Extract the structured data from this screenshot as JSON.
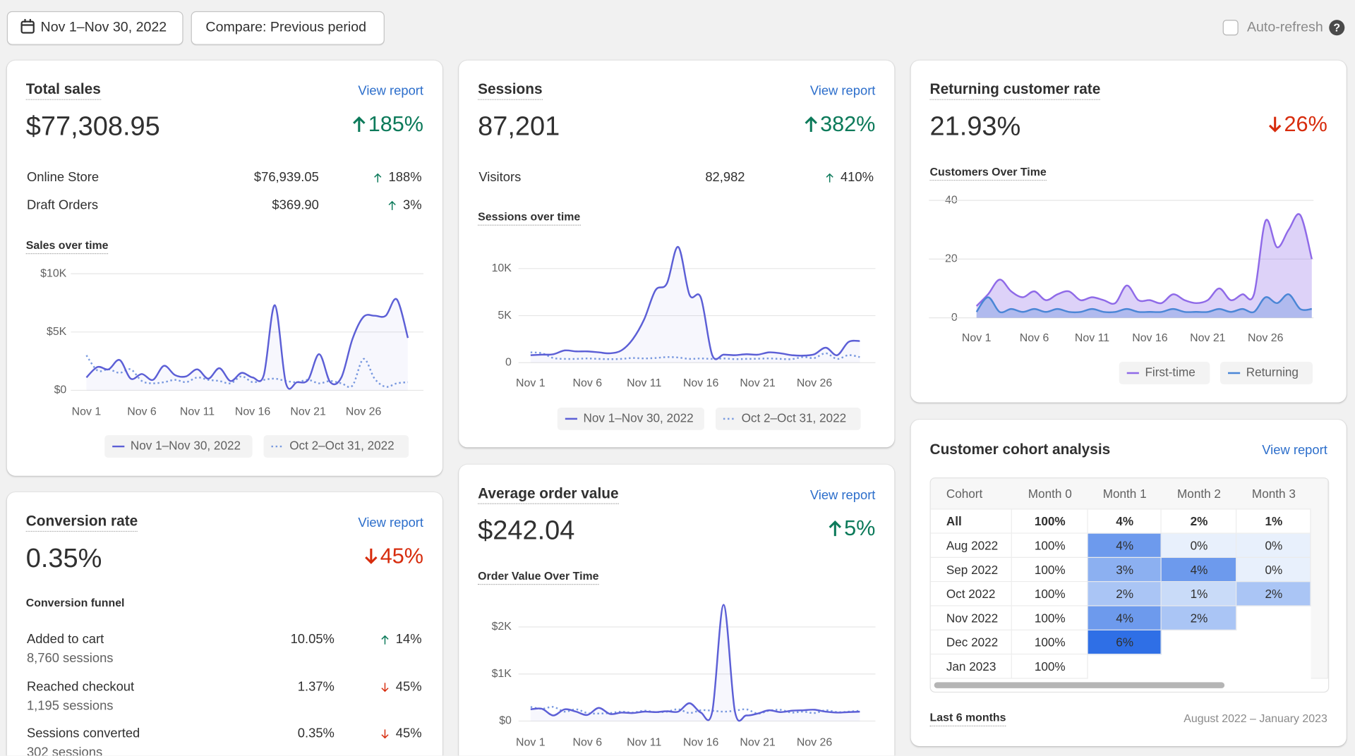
{
  "toolbar": {
    "date_range": "Nov 1–Nov 30, 2022",
    "compare": "Compare: Previous period",
    "auto_refresh": "Auto-refresh"
  },
  "total_sales": {
    "title": "Total sales",
    "link": "View report",
    "value": "$77,308.95",
    "change": "185%",
    "rows": [
      {
        "name": "Online Store",
        "value": "$76,939.05",
        "change": "188%"
      },
      {
        "name": "Draft Orders",
        "value": "$369.90",
        "change": "3%"
      }
    ],
    "chart_data": {
      "type": "line",
      "title": "Sales over time",
      "categories": [
        "Nov 1",
        null,
        null,
        null,
        null,
        "Nov 6",
        null,
        null,
        null,
        null,
        "Nov 11",
        null,
        null,
        null,
        null,
        "Nov 16",
        null,
        null,
        null,
        null,
        "Nov 21",
        null,
        null,
        null,
        null,
        "Nov 26",
        null,
        null,
        null,
        null
      ],
      "series": [
        {
          "name": "Nov 1–Nov 30, 2022",
          "color": "#5c5fd6",
          "values": [
            1100,
            2000,
            1800,
            2600,
            1000,
            1400,
            900,
            2100,
            1300,
            1200,
            1800,
            1000,
            1900,
            800,
            1500,
            1100,
            1300,
            7300,
            600,
            700,
            900,
            3100,
            700,
            1100,
            4400,
            6300,
            6400,
            6400,
            7800,
            4500
          ]
        },
        {
          "name": "Oct 2–Oct 31, 2022",
          "color": "#7a9be0",
          "dashed": true,
          "values": [
            3000,
            1700,
            1800,
            1500,
            1800,
            800,
            600,
            700,
            900,
            700,
            1100,
            900,
            800,
            600,
            1200,
            700,
            900,
            1000,
            800,
            700,
            900,
            600,
            800,
            600,
            400,
            2700,
            1000,
            300,
            600,
            700
          ]
        }
      ],
      "ylim": [
        0,
        10000
      ],
      "yticks": [
        {
          "value": 0,
          "label": "$0"
        },
        {
          "value": 5000,
          "label": "$5K"
        },
        {
          "value": 10000,
          "label": "$10K"
        }
      ],
      "grid": true
    }
  },
  "sessions": {
    "title": "Sessions",
    "link": "View report",
    "value": "87,201",
    "change": "382%",
    "rows": [
      {
        "name": "Visitors",
        "value": "82,982",
        "change": "410%"
      }
    ],
    "chart_data": {
      "type": "line",
      "title": "Sessions over time",
      "categories": [
        "Nov 1",
        null,
        null,
        null,
        null,
        "Nov 6",
        null,
        null,
        null,
        null,
        "Nov 11",
        null,
        null,
        null,
        null,
        "Nov 16",
        null,
        null,
        null,
        null,
        "Nov 21",
        null,
        null,
        null,
        null,
        "Nov 26",
        null,
        null,
        null,
        null
      ],
      "series": [
        {
          "name": "Nov 1–Nov 30, 2022",
          "color": "#5c5fd6",
          "values": [
            800,
            850,
            900,
            1300,
            1200,
            1200,
            1100,
            1000,
            1300,
            2500,
            4600,
            7700,
            8400,
            12300,
            7200,
            6900,
            800,
            850,
            800,
            900,
            850,
            1100,
            1000,
            800,
            750,
            900,
            1600,
            800,
            2200,
            2300
          ]
        },
        {
          "name": "Oct 2–Oct 31, 2022",
          "color": "#7a9be0",
          "dashed": true,
          "values": [
            1100,
            1000,
            500,
            400,
            400,
            450,
            400,
            380,
            400,
            500,
            450,
            500,
            600,
            550,
            400,
            450,
            400,
            450,
            380,
            400,
            420,
            450,
            400,
            380,
            600,
            500,
            1000,
            400,
            800,
            600
          ]
        }
      ],
      "ylim": [
        0,
        12500
      ],
      "yticks": [
        0,
        {
          "value": 5000,
          "label": "5K"
        },
        {
          "value": 10000,
          "label": "10K"
        }
      ],
      "grid": true
    }
  },
  "returning_customer_rate": {
    "title": "Returning customer rate",
    "value": "21.93%",
    "change": "26%",
    "chart_data": {
      "type": "area",
      "title": "Customers Over Time",
      "categories": [
        "Nov 1",
        null,
        null,
        null,
        null,
        "Nov 6",
        null,
        null,
        null,
        null,
        "Nov 11",
        null,
        null,
        null,
        null,
        "Nov 16",
        null,
        null,
        null,
        null,
        "Nov 21",
        null,
        null,
        null,
        null,
        "Nov 26",
        null,
        null,
        null,
        null
      ],
      "series": [
        {
          "name": "First-time",
          "color": "#8f6ae8",
          "values": [
            4,
            8,
            13,
            9,
            7,
            9,
            6,
            8,
            9,
            6,
            7,
            6,
            5,
            11,
            6,
            6,
            5,
            8,
            6,
            5,
            6,
            10,
            6,
            8,
            8,
            33,
            24,
            30,
            35,
            20
          ]
        },
        {
          "name": "Returning",
          "color": "#4a86d6",
          "values": [
            2,
            7,
            2,
            3,
            2,
            3,
            2,
            3,
            2,
            2,
            3,
            2,
            2,
            3,
            2,
            2,
            2,
            3,
            2,
            2,
            2,
            3,
            2,
            3,
            2,
            7,
            5,
            8,
            3,
            3
          ]
        }
      ],
      "ylim": [
        0,
        40
      ],
      "yticks": [
        0,
        20,
        40
      ],
      "grid": true
    }
  },
  "conversion_rate": {
    "title": "Conversion rate",
    "link": "View report",
    "value": "0.35%",
    "change": "45%",
    "funnel_title": "Conversion funnel",
    "rows": [
      {
        "name": "Added to cart",
        "sessions": "8,760 sessions",
        "value": "10.05%",
        "change": "14%"
      },
      {
        "name": "Reached checkout",
        "sessions": "1,195 sessions",
        "value": "1.37%",
        "change": "45%"
      },
      {
        "name": "Sessions converted",
        "sessions": "302 sessions",
        "value": "0.35%",
        "change": "45%"
      }
    ]
  },
  "average_order_value": {
    "title": "Average order value",
    "link": "View report",
    "value": "$242.04",
    "change": "5%",
    "chart_data": {
      "type": "line",
      "title": "Order Value Over Time",
      "categories": [
        "Nov 1",
        null,
        null,
        null,
        null,
        "Nov 6",
        null,
        null,
        null,
        null,
        "Nov 11",
        null,
        null,
        null,
        null,
        "Nov 16",
        null,
        null,
        null,
        null,
        "Nov 21",
        null,
        null,
        null,
        null,
        "Nov 26",
        null,
        null,
        null,
        null
      ],
      "series": [
        {
          "color": "#5c5fd6",
          "values": [
            250,
            260,
            120,
            250,
            200,
            130,
            280,
            150,
            180,
            170,
            200,
            190,
            210,
            200,
            380,
            180,
            200,
            2470,
            200,
            120,
            160,
            230,
            190,
            220,
            230,
            240,
            200,
            180,
            190,
            200
          ]
        },
        {
          "color": "#7a9be0",
          "dashed": true,
          "values": [
            300,
            260,
            300,
            200,
            250,
            170,
            160,
            170,
            200,
            180,
            220,
            190,
            200,
            250,
            170,
            230,
            220,
            200,
            220,
            250,
            160,
            220,
            240,
            180,
            200,
            170,
            230,
            190,
            200,
            220
          ]
        }
      ],
      "ylim": [
        0,
        2500
      ],
      "yticks": [
        {
          "value": 0,
          "label": "$0"
        },
        {
          "value": 1000,
          "label": "$1K"
        },
        {
          "value": 2000,
          "label": "$2K"
        }
      ],
      "grid": true
    }
  },
  "cohort": {
    "title": "Customer cohort analysis",
    "link": "View report",
    "columns": [
      "Cohort",
      "Month 0",
      "Month 1",
      "Month 2",
      "Month 3"
    ],
    "rows": [
      [
        "All",
        "100%",
        "4%",
        "2%",
        "1%"
      ],
      [
        "Aug 2022",
        "100%",
        "4%",
        "0%",
        "0%"
      ],
      [
        "Sep 2022",
        "100%",
        "3%",
        "4%",
        "0%"
      ],
      [
        "Oct 2022",
        "100%",
        "2%",
        "1%",
        "2%"
      ],
      [
        "Nov 2022",
        "100%",
        "4%",
        "2%"
      ],
      [
        "Dec 2022",
        "100%",
        "6%"
      ],
      [
        "Jan 2023",
        "100%"
      ]
    ],
    "footer_label": "Last 6 months",
    "footer_range": "August 2022 – January 2023"
  }
}
